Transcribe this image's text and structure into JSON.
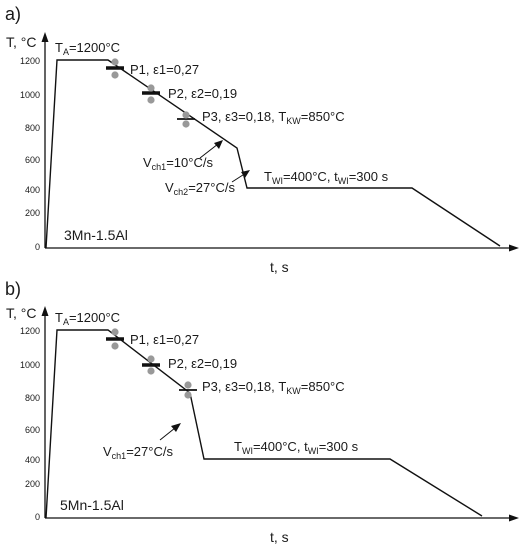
{
  "diagrams": [
    {
      "panel_label": "a)",
      "y_axis_label": "T, °C",
      "x_axis_label": "t, s",
      "y_ticks": [
        "0",
        "200",
        "400",
        "600",
        "800",
        "1000",
        "1200"
      ],
      "austenitization": {
        "T_sym": "T",
        "T_sub": "A",
        "value": "=1200°C"
      },
      "passes": [
        {
          "name": "P1,",
          "eps_sym": "ε1",
          "eps_value": "=0,27"
        },
        {
          "name": "P2,",
          "eps_sym": "ε2",
          "eps_value": "=0,19"
        },
        {
          "name": "P3,",
          "eps_sym": "ε3",
          "eps_value": "=0,18,",
          "tkw_sym": "T",
          "tkw_sub": "KW",
          "tkw_value": "=850°C"
        }
      ],
      "cooling_rates": [
        {
          "sym": "V",
          "sub": "ch1",
          "value": "=10°C/s"
        },
        {
          "sym": "V",
          "sub": "ch2",
          "value": "=27°C/s"
        }
      ],
      "isothermal": {
        "t_sym": "T",
        "t_sub": "WI",
        "t_value": "=400°C,",
        "time_sym": "t",
        "time_sub": "WI",
        "time_value": "=300 s"
      },
      "material": "3Mn-1.5Al"
    },
    {
      "panel_label": "b)",
      "y_axis_label": "T, °C",
      "x_axis_label": "t, s",
      "y_ticks": [
        "0",
        "200",
        "400",
        "600",
        "800",
        "1000",
        "1200"
      ],
      "austenitization": {
        "T_sym": "T",
        "T_sub": "A",
        "value": "=1200°C"
      },
      "passes": [
        {
          "name": "P1,",
          "eps_sym": "ε1",
          "eps_value": "=0,27"
        },
        {
          "name": "P2,",
          "eps_sym": "ε2",
          "eps_value": "=0,19"
        },
        {
          "name": "P3,",
          "eps_sym": "ε3",
          "eps_value": "=0,18,",
          "tkw_sym": "T",
          "tkw_sub": "KW",
          "tkw_value": "=850°C"
        }
      ],
      "cooling_rates": [
        {
          "sym": "V",
          "sub": "ch1",
          "value": "=27°C/s"
        }
      ],
      "isothermal": {
        "t_sym": "T",
        "t_sub": "WI",
        "t_value": "=400°C,",
        "time_sym": "t",
        "time_sub": "WI",
        "time_value": "=300 s"
      },
      "material": "5Mn-1.5Al"
    }
  ]
}
